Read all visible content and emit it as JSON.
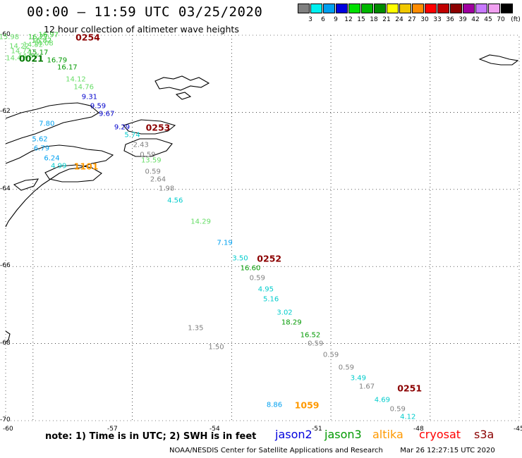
{
  "header": {
    "title": "00:00 – 11:59 UTC 03/25/2020",
    "subtitle": "12 hour collection of altimeter wave heights"
  },
  "colorbar": {
    "colors": [
      "#808080",
      "#00f0f0",
      "#00a0f0",
      "#0000e0",
      "#00e000",
      "#00b800",
      "#008c00",
      "#ffff00",
      "#f0c800",
      "#ff8c00",
      "#ff0000",
      "#c00000",
      "#8c0000",
      "#a000a0",
      "#c878ff",
      "#f0a0f0",
      "#000000"
    ],
    "labels": [
      "3",
      "6",
      "9",
      "12",
      "15",
      "18",
      "21",
      "24",
      "27",
      "30",
      "33",
      "36",
      "39",
      "42",
      "45",
      "70"
    ],
    "unit": "(ft)"
  },
  "axes": {
    "lat_labels": [
      "-60",
      "-62",
      "-64",
      "-66",
      "-68",
      "-70"
    ],
    "lon_labels": [
      "-60",
      "-57",
      "-54",
      "-51",
      "-48",
      "-45"
    ]
  },
  "chart_data": {
    "type": "scatter",
    "xlim": [
      -60,
      -45
    ],
    "ylim": [
      -70,
      -60
    ],
    "points": [
      {
        "lon": -58.75,
        "lat": -60.0,
        "swh": "16.97",
        "color": "#33cc33"
      },
      {
        "lon": -59.05,
        "lat": -60.05,
        "swh": "16.27",
        "color": "#33cc33"
      },
      {
        "lon": -58.95,
        "lat": -60.15,
        "swh": "16.82",
        "color": "#33cc33"
      },
      {
        "lon": -59.9,
        "lat": -60.06,
        "swh": "15.98",
        "color": "#66dd66"
      },
      {
        "lon": -58.9,
        "lat": -60.22,
        "swh": "14.08",
        "color": "#66dd66"
      },
      {
        "lon": -59.2,
        "lat": -60.25,
        "swh": "14.32",
        "color": "#66dd66"
      },
      {
        "lon": -59.6,
        "lat": -60.3,
        "swh": "14.22",
        "color": "#66dd66"
      },
      {
        "lon": -59.05,
        "lat": -60.45,
        "swh": "15.17",
        "color": "#009900"
      },
      {
        "lon": -59.55,
        "lat": -60.42,
        "swh": "14.72",
        "color": "#66dd66"
      },
      {
        "lon": -59.35,
        "lat": -60.55,
        "swh": "14.89",
        "color": "#66dd66"
      },
      {
        "lon": -59.7,
        "lat": -60.6,
        "swh": "14.41",
        "color": "#66dd66"
      },
      {
        "lon": -58.5,
        "lat": -60.65,
        "swh": "16.79",
        "color": "#009900"
      },
      {
        "lon": -58.2,
        "lat": -60.85,
        "swh": "16.17",
        "color": "#009900"
      },
      {
        "lon": -57.95,
        "lat": -61.15,
        "swh": "14.12",
        "color": "#66dd66"
      },
      {
        "lon": -57.72,
        "lat": -61.35,
        "swh": "14.76",
        "color": "#66dd66"
      },
      {
        "lon": -57.55,
        "lat": -61.6,
        "swh": "9.31",
        "color": "#0000cc"
      },
      {
        "lon": -57.3,
        "lat": -61.85,
        "swh": "9.59",
        "color": "#0000cc"
      },
      {
        "lon": -57.05,
        "lat": -62.05,
        "swh": "9.67",
        "color": "#0000cc"
      },
      {
        "lon": -58.8,
        "lat": -62.3,
        "swh": "7.80",
        "color": "#00a0f0"
      },
      {
        "lon": -56.6,
        "lat": -62.4,
        "swh": "9.29",
        "color": "#0000cc"
      },
      {
        "lon": -56.3,
        "lat": -62.6,
        "swh": "5.74",
        "color": "#00cccc"
      },
      {
        "lon": -59.0,
        "lat": -62.7,
        "swh": "5.62",
        "color": "#00a0f0"
      },
      {
        "lon": -56.05,
        "lat": -62.85,
        "swh": "2.43",
        "color": "#808080"
      },
      {
        "lon": -58.95,
        "lat": -62.95,
        "swh": "6.79",
        "color": "#00a0f0"
      },
      {
        "lon": -55.85,
        "lat": -63.1,
        "swh": "0.59",
        "color": "#808080"
      },
      {
        "lon": -58.65,
        "lat": -63.2,
        "swh": "6.24",
        "color": "#00a0f0"
      },
      {
        "lon": -55.75,
        "lat": -63.25,
        "swh": "13.59",
        "color": "#66dd66"
      },
      {
        "lon": -58.45,
        "lat": -63.4,
        "swh": "4.99",
        "color": "#00cccc"
      },
      {
        "lon": -55.7,
        "lat": -63.55,
        "swh": "0.59",
        "color": "#808080"
      },
      {
        "lon": -55.55,
        "lat": -63.75,
        "swh": "2.64",
        "color": "#808080"
      },
      {
        "lon": -55.3,
        "lat": -63.98,
        "swh": "1.98",
        "color": "#808080"
      },
      {
        "lon": -55.05,
        "lat": -64.3,
        "swh": "4.56",
        "color": "#00cccc"
      },
      {
        "lon": -54.3,
        "lat": -64.85,
        "swh": "14.29",
        "color": "#66dd66"
      },
      {
        "lon": -53.6,
        "lat": -65.4,
        "swh": "7.19",
        "color": "#00a0f0"
      },
      {
        "lon": -53.15,
        "lat": -65.8,
        "swh": "3.50",
        "color": "#00cccc"
      },
      {
        "lon": -52.85,
        "lat": -66.05,
        "swh": "16.60",
        "color": "#009900"
      },
      {
        "lon": -52.65,
        "lat": -66.3,
        "swh": "0.59",
        "color": "#808080"
      },
      {
        "lon": -52.4,
        "lat": -66.6,
        "swh": "4.95",
        "color": "#00cccc"
      },
      {
        "lon": -52.25,
        "lat": -66.85,
        "swh": "5.16",
        "color": "#00cccc"
      },
      {
        "lon": -51.85,
        "lat": -67.2,
        "swh": "3.02",
        "color": "#00cccc"
      },
      {
        "lon": -51.65,
        "lat": -67.45,
        "swh": "18.29",
        "color": "#009900"
      },
      {
        "lon": -54.45,
        "lat": -67.6,
        "swh": "1.35",
        "color": "#808080"
      },
      {
        "lon": -51.1,
        "lat": -67.78,
        "swh": "16.52",
        "color": "#009900"
      },
      {
        "lon": -50.95,
        "lat": -68.0,
        "swh": "0.59",
        "color": "#808080"
      },
      {
        "lon": -53.85,
        "lat": -68.1,
        "swh": "1.50",
        "color": "#808080"
      },
      {
        "lon": -50.5,
        "lat": -68.3,
        "swh": "0.59",
        "color": "#808080"
      },
      {
        "lon": -50.05,
        "lat": -68.62,
        "swh": "0.59",
        "color": "#808080"
      },
      {
        "lon": -49.7,
        "lat": -68.9,
        "swh": "3.49",
        "color": "#00cccc"
      },
      {
        "lon": -49.45,
        "lat": -69.12,
        "swh": "1.67",
        "color": "#808080"
      },
      {
        "lon": -49.0,
        "lat": -69.47,
        "swh": "4.69",
        "color": "#00cccc"
      },
      {
        "lon": -52.15,
        "lat": -69.6,
        "swh": "8.86",
        "color": "#00a0f0"
      },
      {
        "lon": -48.55,
        "lat": -69.7,
        "swh": "0.59",
        "color": "#808080"
      },
      {
        "lon": -48.25,
        "lat": -69.9,
        "swh": "4.12",
        "color": "#00cccc"
      }
    ],
    "times": [
      {
        "lon": -57.6,
        "lat": -60.05,
        "text": "0254",
        "color": "#8b0000"
      },
      {
        "lon": -59.25,
        "lat": -60.6,
        "text": "0021",
        "color": "#007700"
      },
      {
        "lon": -55.55,
        "lat": -62.4,
        "text": "0253",
        "color": "#8b0000"
      },
      {
        "lon": -57.65,
        "lat": -63.4,
        "text": "1101",
        "color": "#ff9900"
      },
      {
        "lon": -52.3,
        "lat": -65.8,
        "text": "0252",
        "color": "#8b0000"
      },
      {
        "lon": -51.2,
        "lat": -69.6,
        "text": "1059",
        "color": "#ff9900"
      },
      {
        "lon": -48.2,
        "lat": -69.15,
        "text": "0251",
        "color": "#8b0000"
      }
    ]
  },
  "footer": {
    "note": "note: 1) Time is in UTC; 2) SWH is in feet",
    "satellites": [
      {
        "name": "jason2",
        "color": "#0000dd"
      },
      {
        "name": "jason3",
        "color": "#009900"
      },
      {
        "name": "altika",
        "color": "#ff9900"
      },
      {
        "name": "cryosat",
        "color": "#ff0000"
      },
      {
        "name": "s3a",
        "color": "#8b0000"
      }
    ],
    "credit": "NOAA/NESDIS Center for Satellite Applications and Research",
    "timestamp": "Mar 26 12:27:15 UTC 2020"
  }
}
